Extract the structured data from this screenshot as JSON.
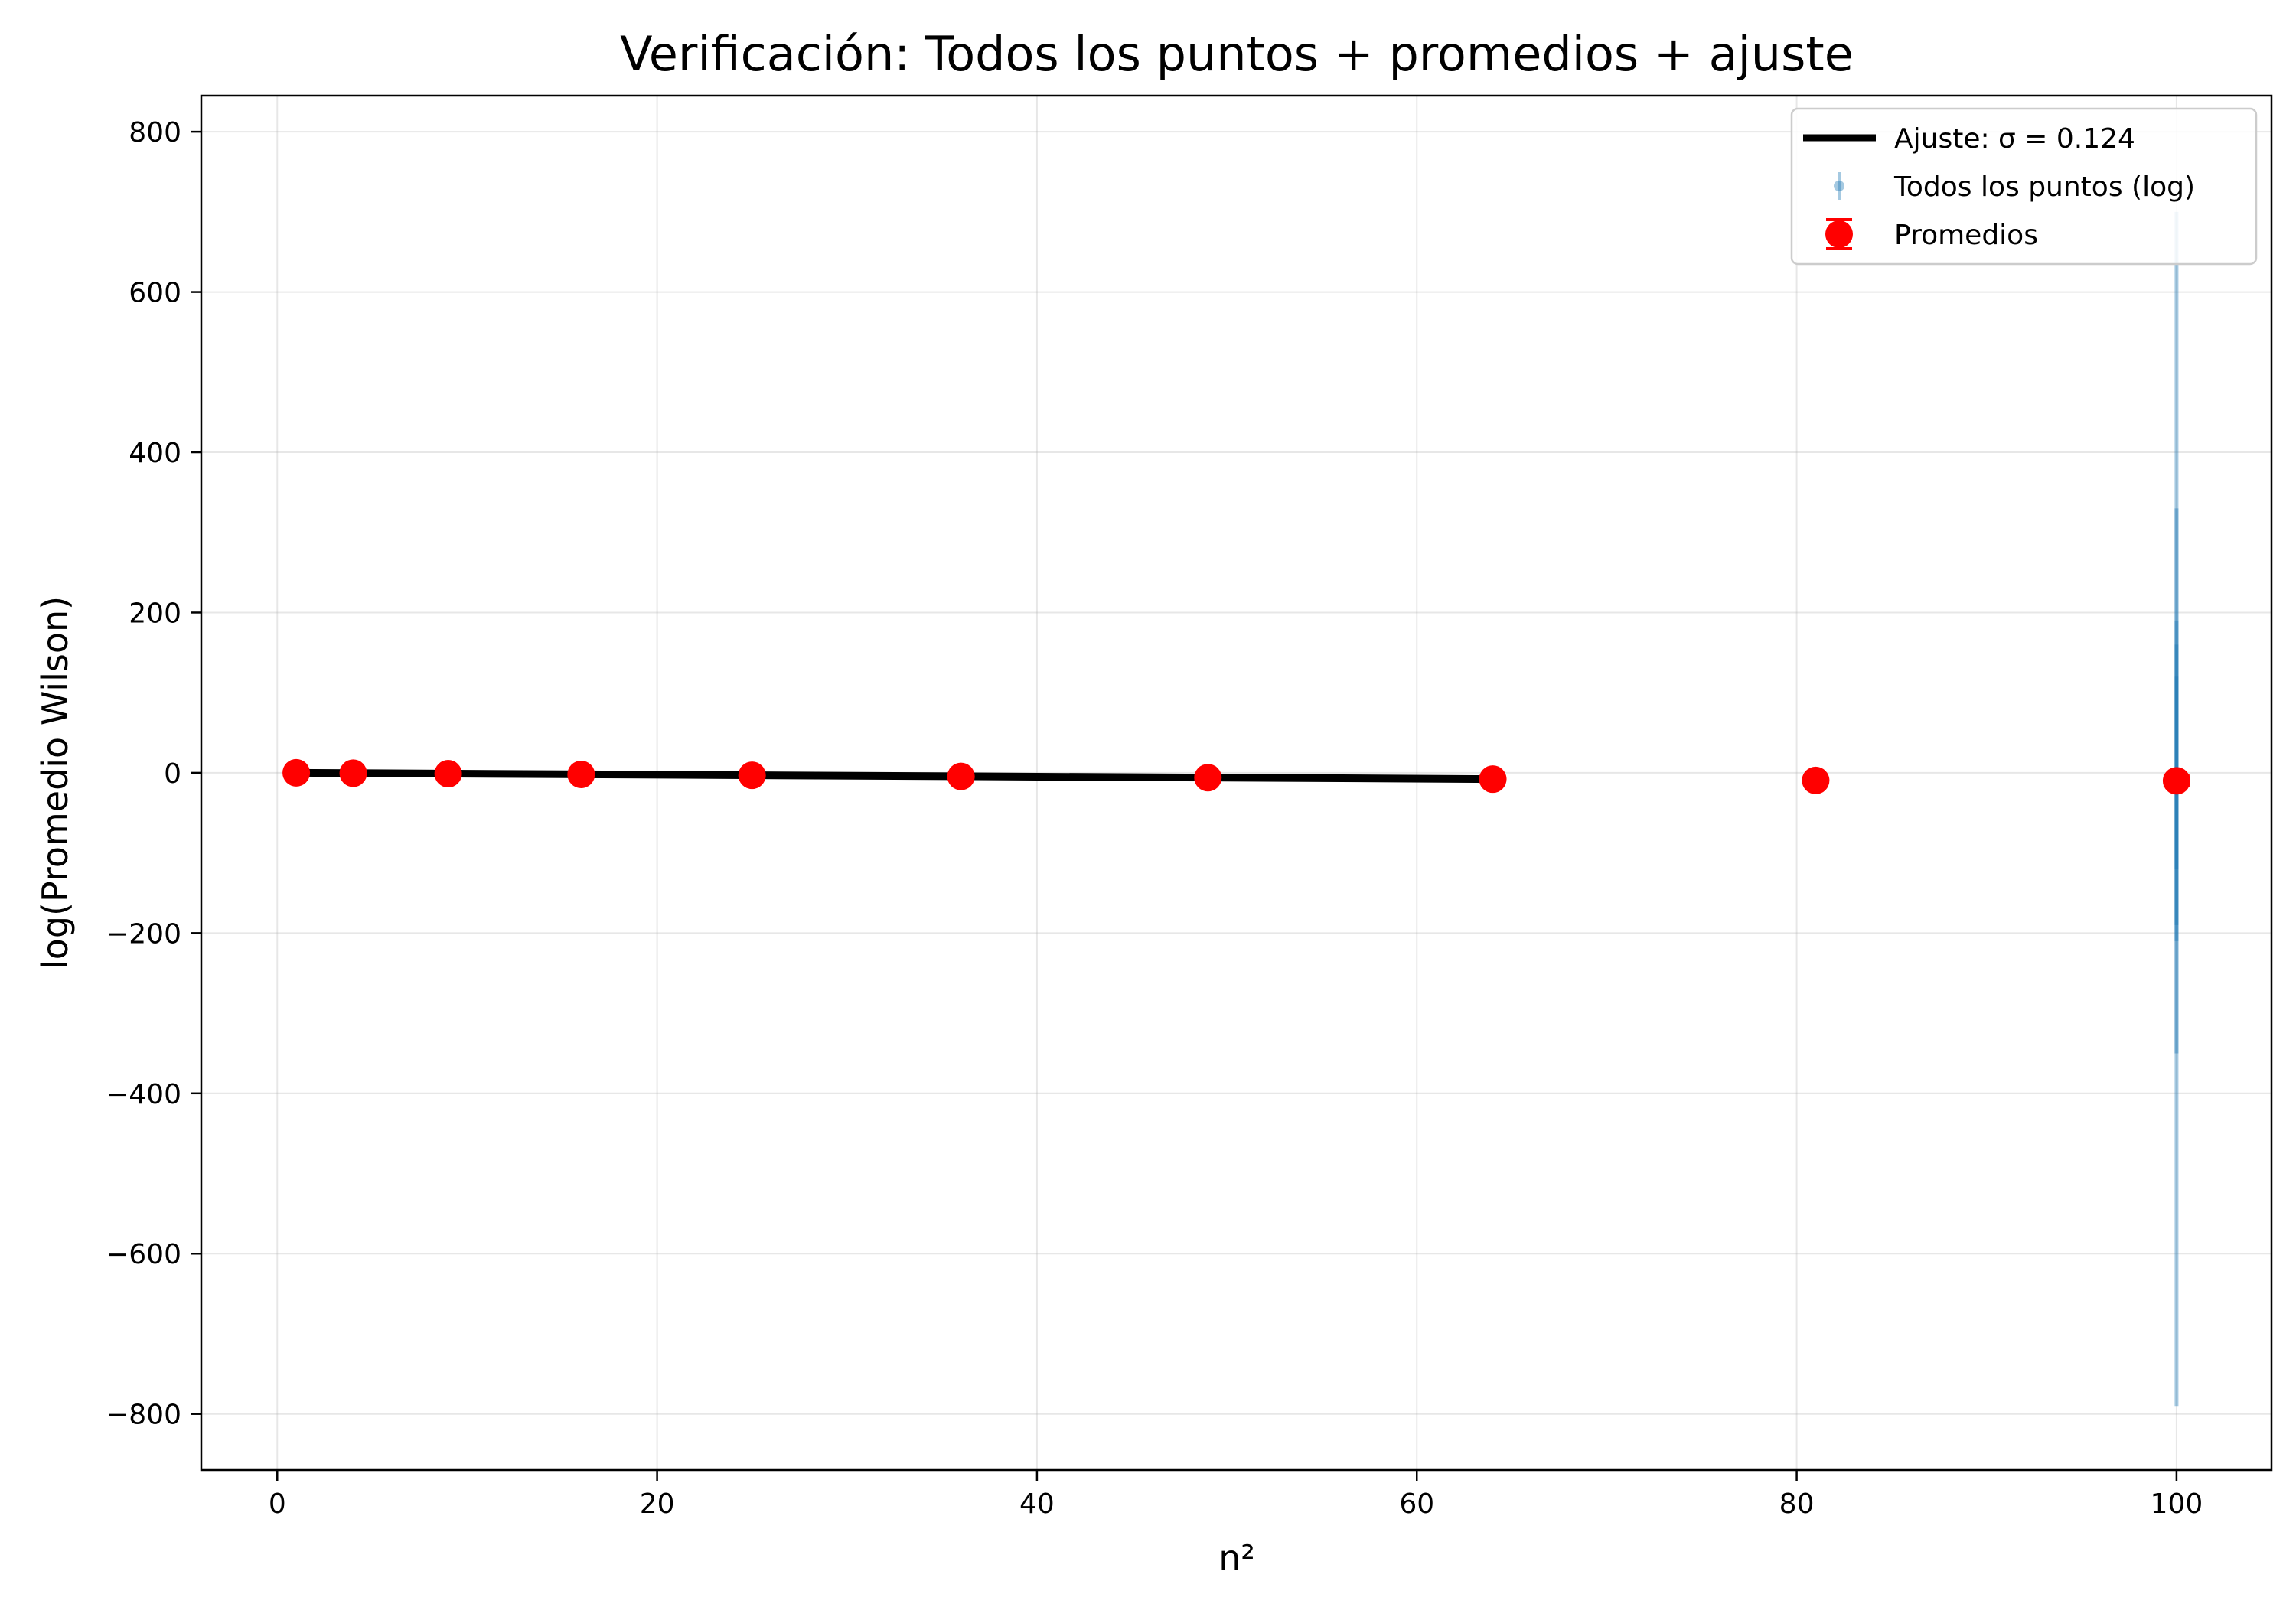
{
  "chart_data": {
    "type": "scatter",
    "title": "Verificación: Todos los puntos + promedios + ajuste",
    "xlabel": "n²",
    "ylabel": "log(Promedio Wilson)",
    "xlim": [
      -4,
      105
    ],
    "ylim": [
      -870,
      845
    ],
    "xticks": [
      0,
      20,
      40,
      60,
      80,
      100
    ],
    "yticks": [
      800,
      600,
      400,
      200,
      0,
      -200,
      -400,
      -600,
      -800
    ],
    "x_tick_labels": [
      "0",
      "20",
      "40",
      "60",
      "80",
      "100"
    ],
    "y_tick_labels": [
      "800",
      "600",
      "400",
      "200",
      "0",
      "−200",
      "−400",
      "−600",
      "−800"
    ],
    "grid": true,
    "legend_position": "top-right",
    "legend": [
      {
        "label": "Ajuste: σ = 0.124",
        "kind": "line",
        "color": "#000000"
      },
      {
        "label": "Todos los puntos (log)",
        "kind": "errorbar-point",
        "color": "#1f77b4"
      },
      {
        "label": "Promedios",
        "kind": "errorbar-marker",
        "color": "#ff0000"
      }
    ],
    "series": [
      {
        "name": "Ajuste: σ = 0.124",
        "kind": "line",
        "color": "#000000",
        "x": [
          1,
          64
        ],
        "y": [
          0.0,
          -7.8
        ]
      },
      {
        "name": "Todos los puntos (log)",
        "kind": "errorbar",
        "color": "#1f77b4",
        "x": 100,
        "points": [
          {
            "y": -9,
            "ylow": -790,
            "yhigh": 700
          },
          {
            "y": -9,
            "ylow": -350,
            "yhigh": 330
          },
          {
            "y": -9,
            "ylow": -210,
            "yhigh": 190
          },
          {
            "y": -9,
            "ylow": -190,
            "yhigh": 160
          },
          {
            "y": -9,
            "ylow": -120,
            "yhigh": 120
          }
        ]
      },
      {
        "name": "Promedios",
        "kind": "errorbar",
        "color": "#ff0000",
        "x": [
          1,
          4,
          9,
          16,
          25,
          36,
          49,
          64,
          81,
          100
        ],
        "y": [
          0.0,
          -0.5,
          -1.1,
          -2.0,
          -3.1,
          -4.5,
          -6.1,
          -7.9,
          -9.5,
          -10.0
        ],
        "yerr": [
          0.3,
          0.3,
          0.3,
          0.3,
          0.4,
          0.4,
          0.5,
          0.6,
          3,
          6
        ]
      }
    ]
  }
}
